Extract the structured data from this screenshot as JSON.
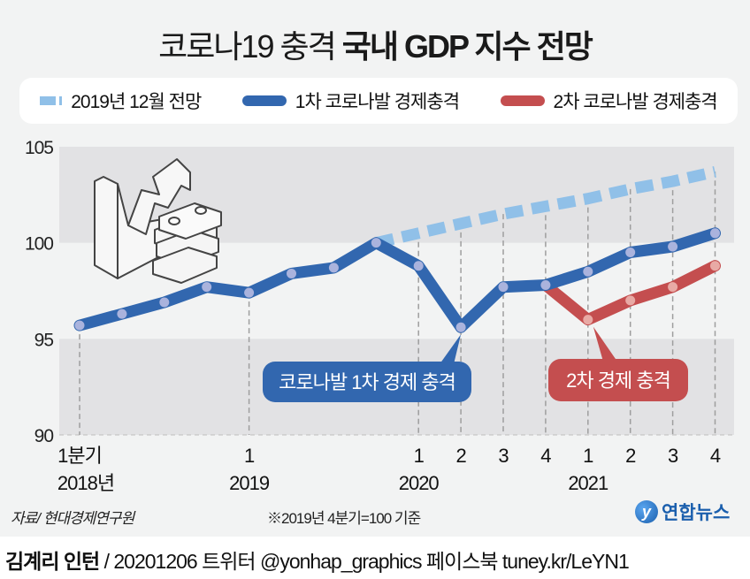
{
  "title": {
    "light": "코로나19 충격",
    "bold": "국내 GDP 지수 전망"
  },
  "legend": [
    {
      "label": "2019년 12월 전망",
      "color": "#90c0e8",
      "style": "dashed"
    },
    {
      "label": "1차 코로나발 경제충격",
      "color": "#3267af",
      "style": "solid"
    },
    {
      "label": "2차 코로나발 경제충격",
      "color": "#c44e4f",
      "style": "solid"
    }
  ],
  "chart_data": {
    "type": "line",
    "title": "코로나19 충격 국내 GDP 지수 전망",
    "xlabel": "",
    "ylabel": "",
    "ylim": [
      90,
      105
    ],
    "yticks": [
      90,
      95,
      100,
      105
    ],
    "grid": "horizontal bands",
    "legend_position": "top",
    "x": [
      "2018Q1",
      "2018Q2",
      "2018Q3",
      "2018Q4",
      "2019Q1",
      "2019Q2",
      "2019Q3",
      "2019Q4",
      "2020Q1",
      "2020Q2",
      "2020Q3",
      "2020Q4",
      "2021Q1",
      "2021Q2",
      "2021Q3",
      "2021Q4"
    ],
    "x_tick_labels": [
      "1분기",
      "",
      "",
      "",
      "1",
      "",
      "",
      "",
      "1",
      "2",
      "3",
      "4",
      "1",
      "2",
      "3",
      "4"
    ],
    "year_labels": [
      {
        "index": 0,
        "label": "2018년"
      },
      {
        "index": 4,
        "label": "2019"
      },
      {
        "index": 8,
        "label": "2020"
      },
      {
        "index": 12,
        "label": "2021"
      }
    ],
    "series": [
      {
        "name": "2019년 12월 전망",
        "color": "#90c0e8",
        "style": "dashed",
        "values": [
          null,
          null,
          null,
          null,
          null,
          null,
          null,
          100.0,
          100.5,
          101.0,
          101.5,
          101.9,
          102.3,
          102.8,
          103.2,
          103.7
        ]
      },
      {
        "name": "1차 코로나발 경제충격",
        "color": "#3267af",
        "style": "solid",
        "values": [
          95.7,
          96.3,
          96.9,
          97.7,
          97.4,
          98.4,
          98.7,
          100.0,
          98.8,
          95.6,
          97.7,
          97.8,
          98.5,
          99.5,
          99.8,
          100.5
        ]
      },
      {
        "name": "2차 코로나발 경제충격",
        "color": "#c44e4f",
        "style": "solid",
        "values": [
          null,
          null,
          null,
          null,
          null,
          null,
          null,
          null,
          null,
          null,
          null,
          97.8,
          96.0,
          97.0,
          97.7,
          98.8
        ]
      }
    ],
    "annotations": [
      {
        "text": "코로나발 1차 경제 충격",
        "target_index": 9,
        "series": 1,
        "color": "#3267af"
      },
      {
        "text": "2차 경제 충격",
        "target_index": 12,
        "series": 2,
        "color": "#c44e4f"
      }
    ],
    "vertical_guides": [
      0,
      4,
      8,
      9,
      10,
      11,
      12,
      13,
      14,
      15
    ]
  },
  "source": "자료/ 현대경제연구원",
  "note": "※2019년 4분기=100 기준",
  "logo": {
    "mark": "y",
    "text": "연합뉴스"
  },
  "footer": {
    "author": "김계리 인턴",
    "rest": " / 20201206  트위터 @yonhap_graphics  페이스북 tuney.kr/LeYN1"
  }
}
